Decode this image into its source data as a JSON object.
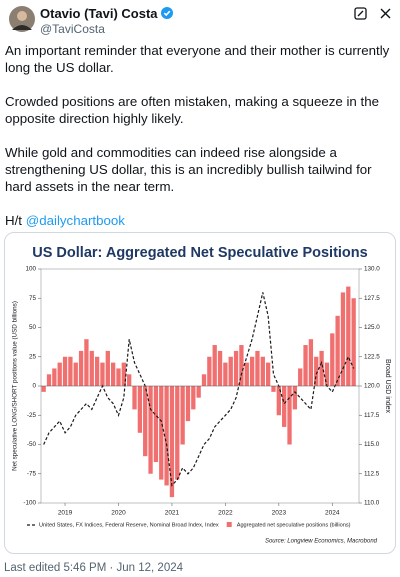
{
  "author": {
    "name": "Otavio (Tavi) Costa",
    "handle": "@TaviCosta"
  },
  "tweet": {
    "paragraphs": [
      "An important reminder that everyone and their mother is currently long the US dollar.",
      "Crowded positions are often mistaken, making a squeeze in the opposite direction highly likely.",
      "While gold and commodities can indeed rise alongside a strengthening US dollar, this is an incredibly bullish tailwind for hard assets in the near term."
    ],
    "hat_tip": "H/t",
    "mention": "@dailychartbook"
  },
  "chart": {
    "type": "bar_line",
    "title": "US Dollar: Aggregated Net Speculative Positions",
    "y_label": "Net speculative LONG/SHORT positions value (USD billions)",
    "y2_label": "Broad USD index",
    "source": "Source: Longview Economics, Macrobond",
    "x": [
      2018.6,
      2018.7,
      2018.8,
      2018.9,
      2019.0,
      2019.1,
      2019.2,
      2019.3,
      2019.4,
      2019.5,
      2019.6,
      2019.7,
      2019.8,
      2019.9,
      2020.0,
      2020.1,
      2020.2,
      2020.3,
      2020.4,
      2020.5,
      2020.6,
      2020.7,
      2020.8,
      2020.9,
      2021.0,
      2021.1,
      2021.2,
      2021.3,
      2021.4,
      2021.5,
      2021.6,
      2021.7,
      2021.8,
      2021.9,
      2022.0,
      2022.1,
      2022.2,
      2022.3,
      2022.4,
      2022.5,
      2022.6,
      2022.7,
      2022.8,
      2022.9,
      2023.0,
      2023.1,
      2023.2,
      2023.3,
      2023.4,
      2023.5,
      2023.6,
      2023.7,
      2023.8,
      2023.9,
      2024.0,
      2024.1,
      2024.2,
      2024.3,
      2024.4
    ],
    "xlim": [
      2018.55,
      2024.5
    ],
    "xticks": [
      2019,
      2020,
      2021,
      2022,
      2023,
      2024
    ],
    "ylim": [
      -100,
      100
    ],
    "yticks": [
      -100,
      -75,
      -50,
      -25,
      0,
      25,
      50,
      75,
      100
    ],
    "y2lim": [
      110,
      130
    ],
    "y2ticks": [
      {
        "value": 110,
        "label": "110.0"
      },
      {
        "value": 112.5,
        "label": "112.5"
      },
      {
        "value": 115,
        "label": "115.0"
      },
      {
        "value": 117.5,
        "label": "117.5"
      },
      {
        "value": 120,
        "label": "120.0"
      },
      {
        "value": 122.5,
        "label": "122.5"
      },
      {
        "value": 125,
        "label": "125.0"
      },
      {
        "value": 127.5,
        "label": "127.5"
      },
      {
        "value": 130,
        "label": "130.0"
      }
    ],
    "series": [
      {
        "name": "United States, FX Indices, Federal Reserve, Nominal Broad Index, Index",
        "color": "#1a1a1a",
        "axis": "y2",
        "values": [
          115,
          116,
          116.5,
          117,
          116,
          116.5,
          117.5,
          118,
          118.5,
          118,
          119,
          120,
          119,
          118.5,
          117.5,
          119,
          124,
          122,
          121,
          120,
          118,
          117.5,
          117,
          115,
          111.5,
          112,
          113,
          112.5,
          113,
          114,
          115,
          115.5,
          116.5,
          117,
          117.5,
          118,
          119,
          121,
          122.5,
          124,
          126,
          128,
          126,
          121,
          120,
          118.5,
          119,
          119.5,
          119,
          118.5,
          118,
          121,
          122,
          120,
          119.5,
          120.5,
          121.5,
          122.5,
          121.5
        ]
      },
      {
        "name": "Aggregated net speculative positions (billions)",
        "color": "#f07070",
        "values": [
          -5,
          10,
          15,
          20,
          25,
          25,
          20,
          30,
          40,
          30,
          25,
          20,
          30,
          20,
          15,
          20,
          10,
          -20,
          -40,
          -60,
          -75,
          -65,
          -80,
          -85,
          -95,
          -80,
          -50,
          -30,
          -20,
          -10,
          10,
          25,
          35,
          30,
          20,
          25,
          30,
          35,
          20,
          25,
          30,
          25,
          20,
          -5,
          -25,
          -35,
          -50,
          -20,
          15,
          35,
          40,
          25,
          30,
          20,
          45,
          60,
          80,
          85,
          75
        ]
      }
    ]
  },
  "footer": {
    "timestamp": "Last edited 5:46 PM · Jun 12, 2024"
  }
}
